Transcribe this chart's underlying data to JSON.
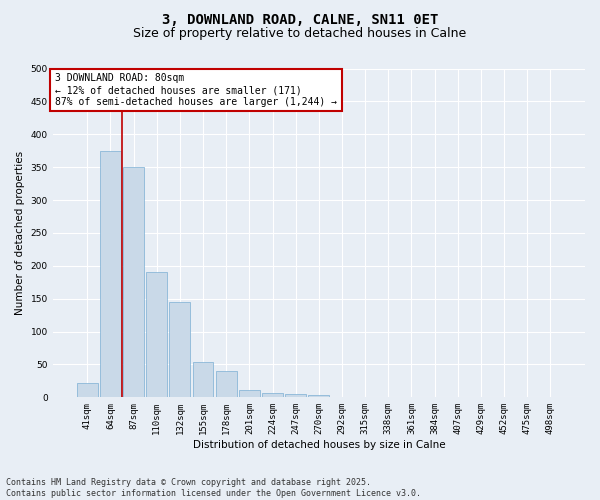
{
  "title_line1": "3, DOWNLAND ROAD, CALNE, SN11 0ET",
  "title_line2": "Size of property relative to detached houses in Calne",
  "xlabel": "Distribution of detached houses by size in Calne",
  "ylabel": "Number of detached properties",
  "bar_labels": [
    "41sqm",
    "64sqm",
    "87sqm",
    "110sqm",
    "132sqm",
    "155sqm",
    "178sqm",
    "201sqm",
    "224sqm",
    "247sqm",
    "270sqm",
    "292sqm",
    "315sqm",
    "338sqm",
    "361sqm",
    "384sqm",
    "407sqm",
    "429sqm",
    "452sqm",
    "475sqm",
    "498sqm"
  ],
  "bar_values": [
    22,
    375,
    350,
    190,
    145,
    54,
    40,
    11,
    7,
    5,
    3,
    1,
    0,
    1,
    0,
    0,
    0,
    0,
    0,
    0,
    0
  ],
  "bar_color": "#c9d9e8",
  "bar_edge_color": "#7bafd4",
  "vline_color": "#c00000",
  "vline_x_idx": 1.5,
  "annotation_text": "3 DOWNLAND ROAD: 80sqm\n← 12% of detached houses are smaller (171)\n87% of semi-detached houses are larger (1,244) →",
  "annotation_box_facecolor": "#ffffff",
  "annotation_box_edgecolor": "#c00000",
  "ylim": [
    0,
    500
  ],
  "yticks": [
    0,
    50,
    100,
    150,
    200,
    250,
    300,
    350,
    400,
    450,
    500
  ],
  "footer_line1": "Contains HM Land Registry data © Crown copyright and database right 2025.",
  "footer_line2": "Contains public sector information licensed under the Open Government Licence v3.0.",
  "bg_color": "#e8eef5",
  "plot_bg_color": "#e8eef5",
  "grid_color": "#ffffff",
  "title_fontsize": 10,
  "subtitle_fontsize": 9,
  "axis_label_fontsize": 7.5,
  "tick_fontsize": 6.5,
  "annotation_fontsize": 7,
  "footer_fontsize": 6
}
